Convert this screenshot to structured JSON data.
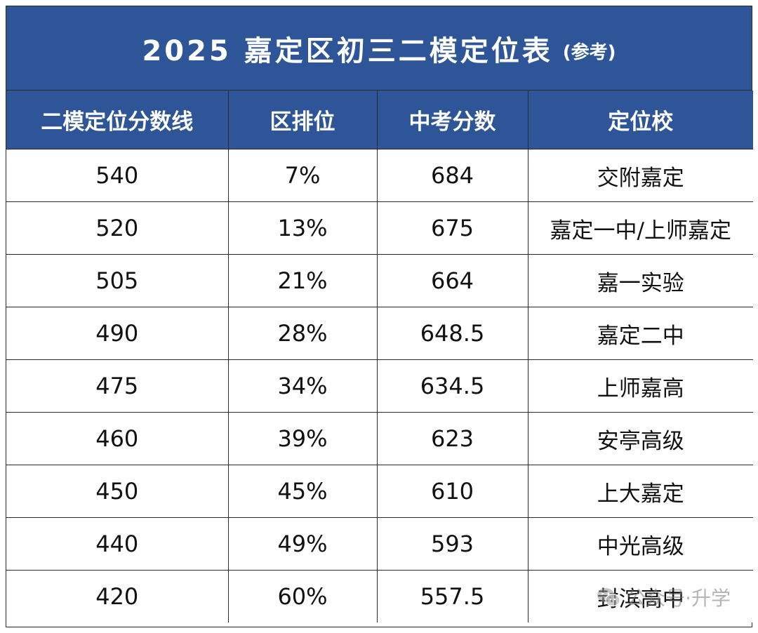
{
  "title": {
    "main": "2025 嘉定区初三二模定位表",
    "note": "(参考)"
  },
  "headers": [
    "二模定位分数线",
    "区排位",
    "中考分数",
    "定位校"
  ],
  "rows": [
    [
      "540",
      "7%",
      "684",
      "交附嘉定"
    ],
    [
      "520",
      "13%",
      "675",
      "嘉定一中/上师嘉定"
    ],
    [
      "505",
      "21%",
      "664",
      "嘉一实验"
    ],
    [
      "490",
      "28%",
      "648.5",
      "嘉定二中"
    ],
    [
      "475",
      "34%",
      "634.5",
      "上师嘉高"
    ],
    [
      "460",
      "39%",
      "623",
      "安亭高级"
    ],
    [
      "450",
      "45%",
      "610",
      "上大嘉定"
    ],
    [
      "440",
      "49%",
      "593",
      "中光高级"
    ],
    [
      "420",
      "60%",
      "557.5",
      "封滨高中"
    ]
  ],
  "watermark": "公众号·升学",
  "colors": {
    "header_bg": "#2e5597",
    "header_text": "#ffffff",
    "border": "#2a2a2a"
  }
}
